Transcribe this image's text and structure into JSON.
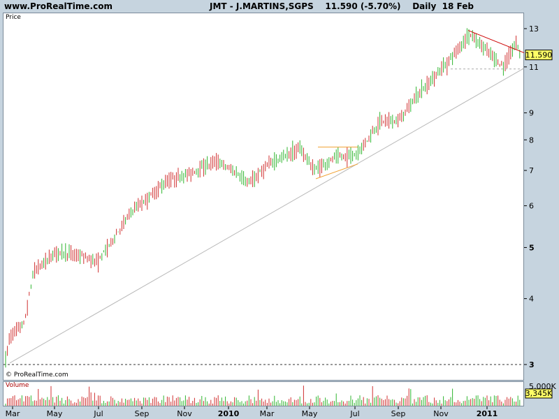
{
  "header": {
    "site": "www.ProRealTime.com",
    "title": "JMT - J.MARTINS,SGPS    11.590 (-5.70%)    Daily  18 Feb"
  },
  "price_panel": {
    "label": "Price",
    "copyright": "© ProRealTime.com",
    "last_price_label": "11.590"
  },
  "volume_panel": {
    "label": "Volume",
    "max_label": "5,000K",
    "last_label": "3,345K"
  },
  "colors": {
    "up": "#2fb52f",
    "down": "#d03030",
    "badge": "#ffff66",
    "resistance": "#cc0000",
    "triangle": "#f0a030",
    "trendline": "#b8b8b8"
  },
  "chart_data": {
    "type": "candlestick",
    "title": "JMT - J.MARTINS,SGPS",
    "yscale": "log",
    "ylim": [
      2.95,
      13.6
    ],
    "yticks": [
      "3",
      "4",
      "5",
      "6",
      "7",
      "8",
      "9",
      "11",
      "13"
    ],
    "xticks": [
      "Mar",
      "May",
      "Jul",
      "Sep",
      "Nov",
      "2010",
      "Mar",
      "May",
      "Jul",
      "Sep",
      "Nov",
      "2011"
    ],
    "last_price": 11.59,
    "change_pct": -5.7,
    "trend_points": [
      [
        "Mar 2009",
        3.05
      ],
      [
        "Mar 2009",
        3.4
      ],
      [
        "Apr 2009",
        3.6
      ],
      [
        "Apr 2009",
        4.5
      ],
      [
        "May 2009",
        4.9
      ],
      [
        "Jun 2009",
        4.85
      ],
      [
        "Jul 2009",
        4.7
      ],
      [
        "Aug 2009",
        5.9
      ],
      [
        "Sep 2009",
        6.1
      ],
      [
        "Oct 2009",
        6.7
      ],
      [
        "Nov 2009",
        6.9
      ],
      [
        "Dec 2009",
        7.3
      ],
      [
        "Jan 2010",
        6.9
      ],
      [
        "Feb 2010",
        6.6
      ],
      [
        "Mar 2010",
        7.2
      ],
      [
        "Apr 2010",
        7.7
      ],
      [
        "May 2010",
        7.0
      ],
      [
        "Jun 2010",
        7.4
      ],
      [
        "Jul 2010",
        7.5
      ],
      [
        "Aug 2010",
        8.7
      ],
      [
        "Sep 2010",
        8.7
      ],
      [
        "Oct 2010",
        9.8
      ],
      [
        "Nov 2010",
        11.2
      ],
      [
        "Dec 2010",
        12.7
      ],
      [
        "Jan 2011",
        11.0
      ],
      [
        "Feb 2011",
        12.3
      ],
      [
        "18 Feb 2011",
        11.59
      ]
    ]
  }
}
